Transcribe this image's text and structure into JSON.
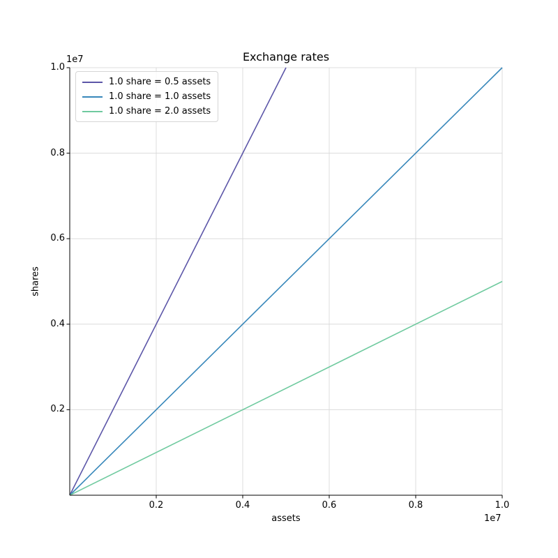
{
  "chart_data": {
    "type": "line",
    "title": "Exchange rates",
    "xlabel": "assets",
    "ylabel": "shares",
    "x_offset_label": "1e7",
    "y_offset_label": "1e7",
    "xlim": [
      0,
      10000000
    ],
    "ylim": [
      0,
      10000000
    ],
    "xticks": {
      "values": [
        2000000,
        4000000,
        6000000,
        8000000,
        10000000
      ],
      "labels": [
        "0.2",
        "0.4",
        "0.6",
        "0.8",
        "1.0"
      ]
    },
    "yticks": {
      "values": [
        2000000,
        4000000,
        6000000,
        8000000,
        10000000
      ],
      "labels": [
        "0.2",
        "0.4",
        "0.6",
        "0.8",
        "1.0"
      ]
    },
    "grid": true,
    "legend_position": "upper left",
    "colors": {
      "grid": "#dcdcdc",
      "spine": "#000000",
      "background": "#ffffff"
    },
    "series": [
      {
        "name": "1.0 share = 0.5 assets",
        "color": "#5c56a8",
        "exchange_rate_assets_per_share": 0.5,
        "points": [
          [
            0,
            0
          ],
          [
            5000000,
            10000000
          ]
        ]
      },
      {
        "name": "1.0 share = 1.0 assets",
        "color": "#3787ba",
        "exchange_rate_assets_per_share": 1.0,
        "points": [
          [
            0,
            0
          ],
          [
            10000000,
            10000000
          ]
        ]
      },
      {
        "name": "1.0 share = 2.0 assets",
        "color": "#6fca9f",
        "exchange_rate_assets_per_share": 2.0,
        "points": [
          [
            0,
            0
          ],
          [
            10000000,
            5000000
          ]
        ]
      }
    ]
  }
}
